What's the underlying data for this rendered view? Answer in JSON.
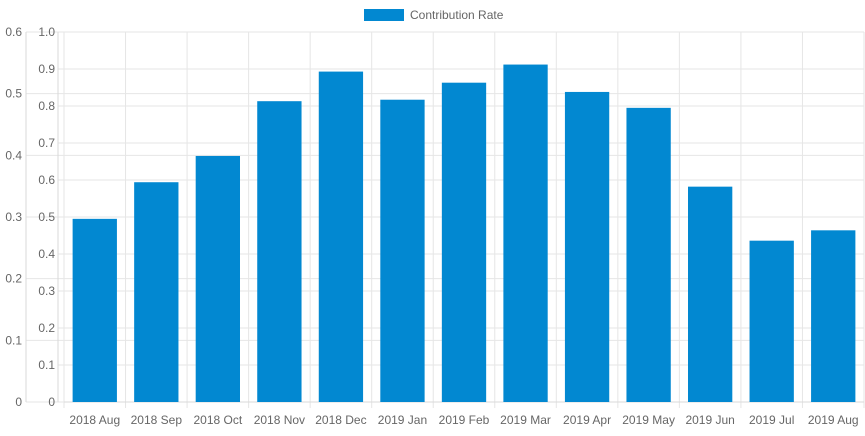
{
  "chart_data": {
    "type": "bar",
    "categories": [
      "2018 Aug",
      "2018 Sep",
      "2018 Oct",
      "2018 Nov",
      "2018 Dec",
      "2019 Jan",
      "2019 Feb",
      "2019 Mar",
      "2019 Apr",
      "2019 May",
      "2019 Jun",
      "2019 Jul",
      "2019 Aug"
    ],
    "series": [
      {
        "name": "Contribution Rate",
        "color": "#0288d1",
        "values": [
          0.495,
          0.594,
          0.665,
          0.813,
          0.893,
          0.817,
          0.863,
          0.912,
          0.838,
          0.795,
          0.582,
          0.436,
          0.464
        ]
      }
    ],
    "y_axes": [
      {
        "side": "left-outer",
        "ylim": [
          0,
          0.6
        ],
        "ticks": [
          "0",
          "0.1",
          "0.2",
          "0.3",
          "0.4",
          "0.5",
          "0.6"
        ]
      },
      {
        "side": "left-inner",
        "ylim": [
          0,
          1.0
        ],
        "ticks": [
          "0",
          "0.1",
          "0.2",
          "0.3",
          "0.4",
          "0.5",
          "0.6",
          "0.7",
          "0.8",
          "0.9",
          "1.0"
        ]
      }
    ],
    "grid": true,
    "legend_position": "top-center"
  }
}
